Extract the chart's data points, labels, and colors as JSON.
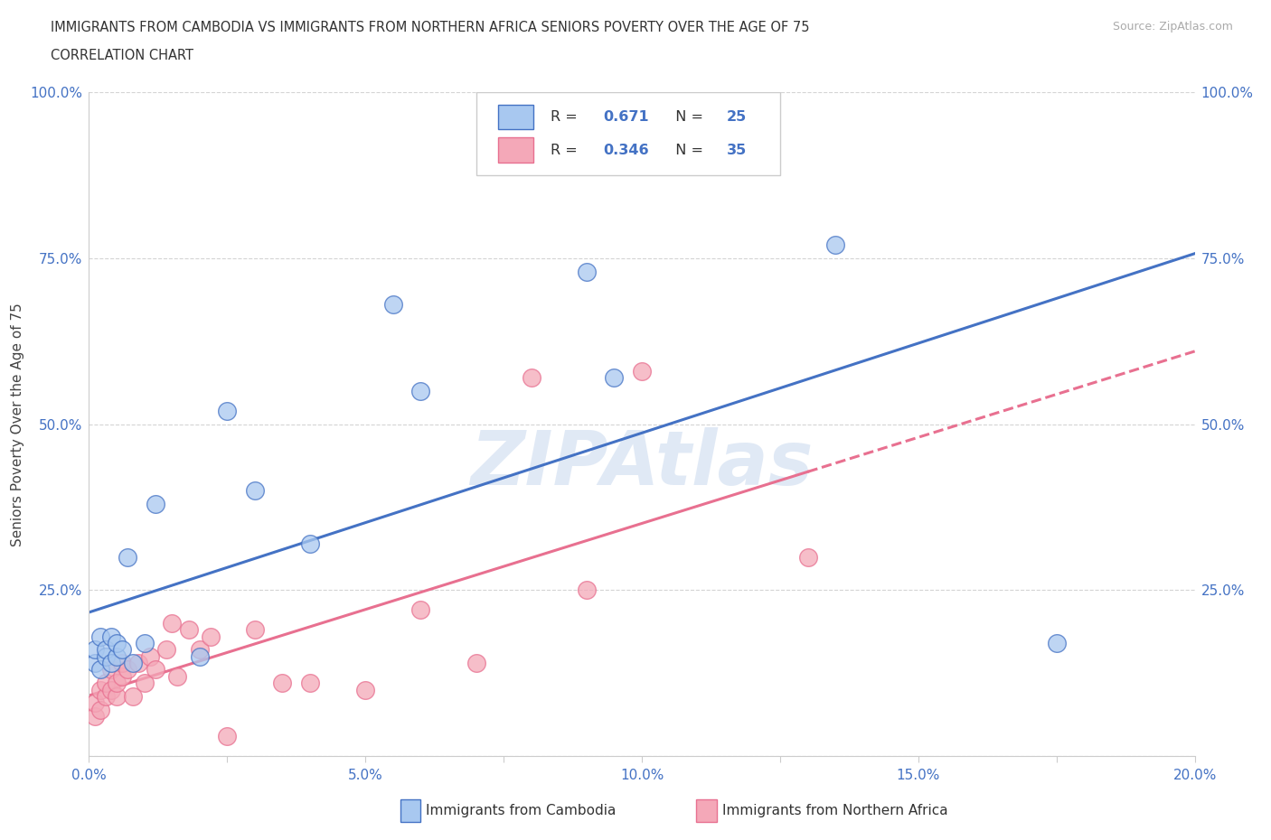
{
  "title_line1": "IMMIGRANTS FROM CAMBODIA VS IMMIGRANTS FROM NORTHERN AFRICA SENIORS POVERTY OVER THE AGE OF 75",
  "title_line2": "CORRELATION CHART",
  "source_text": "Source: ZipAtlas.com",
  "ylabel": "Seniors Poverty Over the Age of 75",
  "xlim": [
    0.0,
    0.2
  ],
  "ylim": [
    0.0,
    1.0
  ],
  "xtick_labels": [
    "0.0%",
    "",
    "5.0%",
    "",
    "10.0%",
    "",
    "15.0%",
    "",
    "20.0%"
  ],
  "xtick_vals": [
    0.0,
    0.025,
    0.05,
    0.075,
    0.1,
    0.125,
    0.15,
    0.175,
    0.2
  ],
  "ytick_labels_left": [
    "",
    "25.0%",
    "50.0%",
    "75.0%",
    "100.0%"
  ],
  "ytick_labels_right": [
    "",
    "25.0%",
    "50.0%",
    "75.0%",
    "100.0%"
  ],
  "ytick_vals": [
    0.0,
    0.25,
    0.5,
    0.75,
    1.0
  ],
  "cambodia_color": "#a8c8f0",
  "northern_africa_color": "#f4a8b8",
  "regression_cambodia_color": "#4472c4",
  "regression_na_color": "#e87090",
  "R_cambodia": 0.671,
  "N_cambodia": 25,
  "R_na": 0.346,
  "N_na": 35,
  "watermark": "ZIPAtlas",
  "legend_label_cambodia": "Immigrants from Cambodia",
  "legend_label_na": "Immigrants from Northern Africa",
  "cambodia_x": [
    0.001,
    0.001,
    0.002,
    0.002,
    0.003,
    0.003,
    0.004,
    0.004,
    0.005,
    0.005,
    0.006,
    0.007,
    0.008,
    0.01,
    0.012,
    0.02,
    0.025,
    0.03,
    0.04,
    0.055,
    0.06,
    0.09,
    0.095,
    0.135,
    0.175
  ],
  "cambodia_y": [
    0.14,
    0.16,
    0.13,
    0.18,
    0.15,
    0.16,
    0.14,
    0.18,
    0.15,
    0.17,
    0.16,
    0.3,
    0.14,
    0.17,
    0.38,
    0.15,
    0.52,
    0.4,
    0.32,
    0.68,
    0.55,
    0.73,
    0.57,
    0.77,
    0.17
  ],
  "na_x": [
    0.001,
    0.001,
    0.002,
    0.002,
    0.003,
    0.003,
    0.004,
    0.004,
    0.005,
    0.005,
    0.006,
    0.006,
    0.007,
    0.008,
    0.009,
    0.01,
    0.011,
    0.012,
    0.014,
    0.015,
    0.016,
    0.018,
    0.02,
    0.022,
    0.025,
    0.03,
    0.035,
    0.04,
    0.05,
    0.06,
    0.07,
    0.08,
    0.09,
    0.1,
    0.13
  ],
  "na_y": [
    0.06,
    0.08,
    0.07,
    0.1,
    0.09,
    0.11,
    0.1,
    0.13,
    0.09,
    0.11,
    0.12,
    0.14,
    0.13,
    0.09,
    0.14,
    0.11,
    0.15,
    0.13,
    0.16,
    0.2,
    0.12,
    0.19,
    0.16,
    0.18,
    0.03,
    0.19,
    0.11,
    0.11,
    0.1,
    0.22,
    0.14,
    0.57,
    0.25,
    0.58,
    0.3
  ],
  "background_color": "#ffffff",
  "grid_color": "#d0d0d0"
}
